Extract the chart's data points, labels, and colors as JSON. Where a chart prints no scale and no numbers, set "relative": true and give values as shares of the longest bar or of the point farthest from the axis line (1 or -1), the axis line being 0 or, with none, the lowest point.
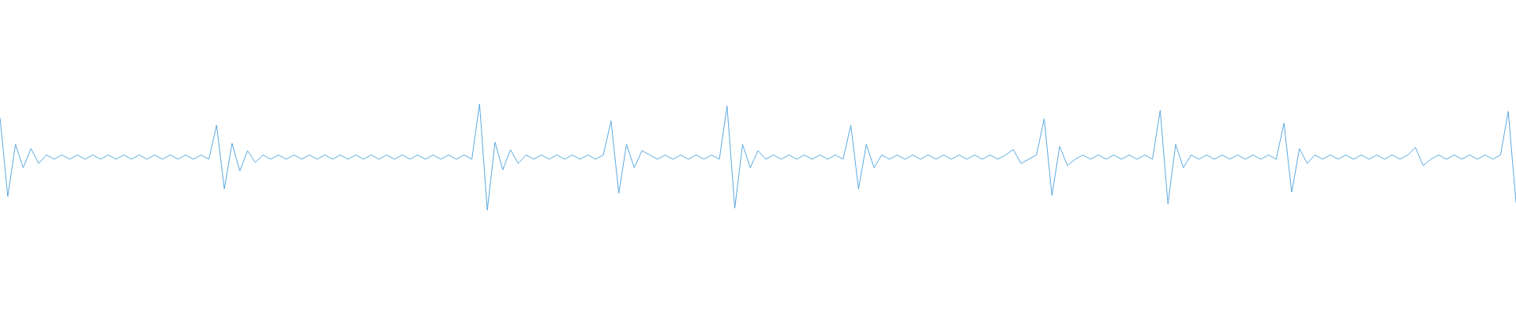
{
  "chart_data": {
    "type": "line",
    "relative": true,
    "color": "#5aa9e0",
    "categories": [
      null,
      null,
      null,
      null,
      null,
      null,
      null,
      null,
      null,
      null,
      null,
      null,
      null,
      null,
      null,
      null,
      null,
      null,
      null,
      null,
      null,
      null,
      null,
      null,
      null,
      null,
      null,
      null,
      null,
      null,
      null,
      null,
      null,
      null,
      null,
      null,
      null,
      null,
      null,
      null,
      null,
      null,
      null,
      null,
      null,
      null,
      null,
      null,
      null,
      null,
      null,
      null,
      null,
      null,
      null,
      null,
      null,
      null,
      null,
      null,
      null,
      null,
      null,
      null,
      null,
      null,
      null,
      null,
      null,
      null,
      null,
      null,
      null,
      null,
      null,
      null,
      null,
      null,
      null,
      null,
      null,
      null,
      null,
      null,
      null,
      null,
      null,
      null,
      null,
      null,
      null,
      null,
      null,
      null,
      null,
      null,
      null,
      null,
      null,
      null,
      null,
      null,
      null,
      null,
      null,
      null,
      null,
      null,
      null,
      null,
      null,
      null,
      null,
      null,
      null,
      null,
      null,
      null,
      null,
      null,
      null,
      null,
      null,
      null,
      null,
      null,
      null,
      null,
      null,
      null,
      null,
      null,
      null,
      null,
      null,
      null,
      null,
      null,
      null,
      null,
      null,
      null,
      null,
      null,
      null,
      null,
      null,
      null,
      null,
      null,
      null,
      null,
      null,
      null,
      null,
      null,
      null,
      null,
      null,
      null,
      null,
      null,
      null,
      null,
      null,
      null,
      null,
      null,
      null,
      null,
      null,
      null,
      null,
      null,
      null,
      null,
      null,
      null,
      null,
      null,
      null,
      null,
      null,
      null,
      null,
      null,
      null,
      null,
      null,
      null,
      null,
      null,
      null,
      null,
      null,
      null,
      null
    ],
    "values": [
      0.87,
      0.13,
      0.62,
      0.4,
      0.58,
      0.44,
      0.52,
      0.48,
      0.52,
      0.48,
      0.52,
      0.48,
      0.52,
      0.48,
      0.52,
      0.48,
      0.52,
      0.48,
      0.52,
      0.48,
      0.52,
      0.48,
      0.52,
      0.48,
      0.52,
      0.48,
      0.52,
      0.48,
      0.8,
      0.2,
      0.63,
      0.37,
      0.56,
      0.45,
      0.52,
      0.48,
      0.52,
      0.48,
      0.52,
      0.48,
      0.52,
      0.48,
      0.52,
      0.48,
      0.52,
      0.48,
      0.52,
      0.48,
      0.52,
      0.48,
      0.52,
      0.48,
      0.52,
      0.48,
      0.52,
      0.48,
      0.52,
      0.48,
      0.52,
      0.48,
      0.52,
      0.48,
      1,
      0,
      0.64,
      0.38,
      0.57,
      0.44,
      0.52,
      0.48,
      0.52,
      0.48,
      0.52,
      0.48,
      0.52,
      0.48,
      0.52,
      0.48,
      0.52,
      0.84,
      0.16,
      0.62,
      0.4,
      0.56,
      0.52,
      0.48,
      0.52,
      0.48,
      0.52,
      0.48,
      0.52,
      0.48,
      0.52,
      0.48,
      0.98,
      0.02,
      0.62,
      0.4,
      0.56,
      0.48,
      0.52,
      0.48,
      0.52,
      0.48,
      0.52,
      0.48,
      0.52,
      0.48,
      0.52,
      0.48,
      0.8,
      0.2,
      0.62,
      0.4,
      0.52,
      0.48,
      0.52,
      0.48,
      0.52,
      0.48,
      0.52,
      0.48,
      0.52,
      0.48,
      0.52,
      0.48,
      0.52,
      0.48,
      0.52,
      0.48,
      0.52,
      0.57,
      0.44,
      0.48,
      0.52,
      0.86,
      0.14,
      0.6,
      0.42,
      0.48,
      0.52,
      0.48,
      0.52,
      0.48,
      0.52,
      0.48,
      0.52,
      0.48,
      0.52,
      0.48,
      0.94,
      0.06,
      0.62,
      0.4,
      0.52,
      0.48,
      0.52,
      0.48,
      0.52,
      0.48,
      0.52,
      0.48,
      0.52,
      0.48,
      0.52,
      0.48,
      0.82,
      0.17,
      0.58,
      0.44,
      0.52,
      0.48,
      0.52,
      0.48,
      0.52,
      0.48,
      0.52,
      0.48,
      0.52,
      0.48,
      0.52,
      0.48,
      0.52,
      0.59,
      0.42,
      0.48,
      0.52,
      0.48,
      0.52,
      0.48,
      0.52,
      0.48,
      0.52,
      0.48,
      0.52,
      0.93,
      0.07
    ]
  }
}
